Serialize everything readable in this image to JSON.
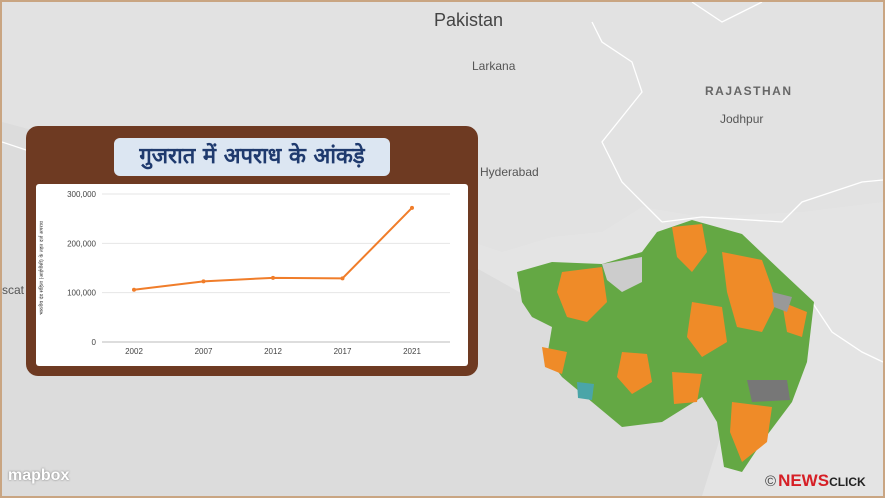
{
  "map": {
    "places": {
      "pakistan": "Pakistan",
      "larkana": "Larkana",
      "rajasthan": "RAJASTHAN",
      "jodhpur": "Jodhpur",
      "hyderabad": "Hyderabad",
      "karachi_partial": "scat"
    },
    "attribution": "mapbox",
    "colors": {
      "water": "#dcdcdc",
      "land": "#e4e4e4",
      "green": "#64a844",
      "orange": "#ef8b28",
      "grey": "#777777",
      "teal": "#4aa5a8"
    }
  },
  "logo": {
    "copyright": "©",
    "news": "NEWS",
    "click": "CLICK"
  },
  "panel": {
    "title": "गुजरात में अपराध के आंकड़े"
  },
  "chart_data": {
    "type": "line",
    "categories": [
      "2002",
      "2007",
      "2012",
      "2017",
      "2021"
    ],
    "series": [
      {
        "values": [
          106000,
          123000,
          130000,
          129000,
          272000
        ],
        "color": "#f07d2a"
      }
    ],
    "ylabel": "भारतीय दंड संहिता (आईपीसी) के तहत दर्ज अपराध",
    "ylim": [
      0,
      300000
    ],
    "yticks": [
      "0",
      "100,000",
      "200,000",
      "300,000"
    ],
    "grid": true
  }
}
